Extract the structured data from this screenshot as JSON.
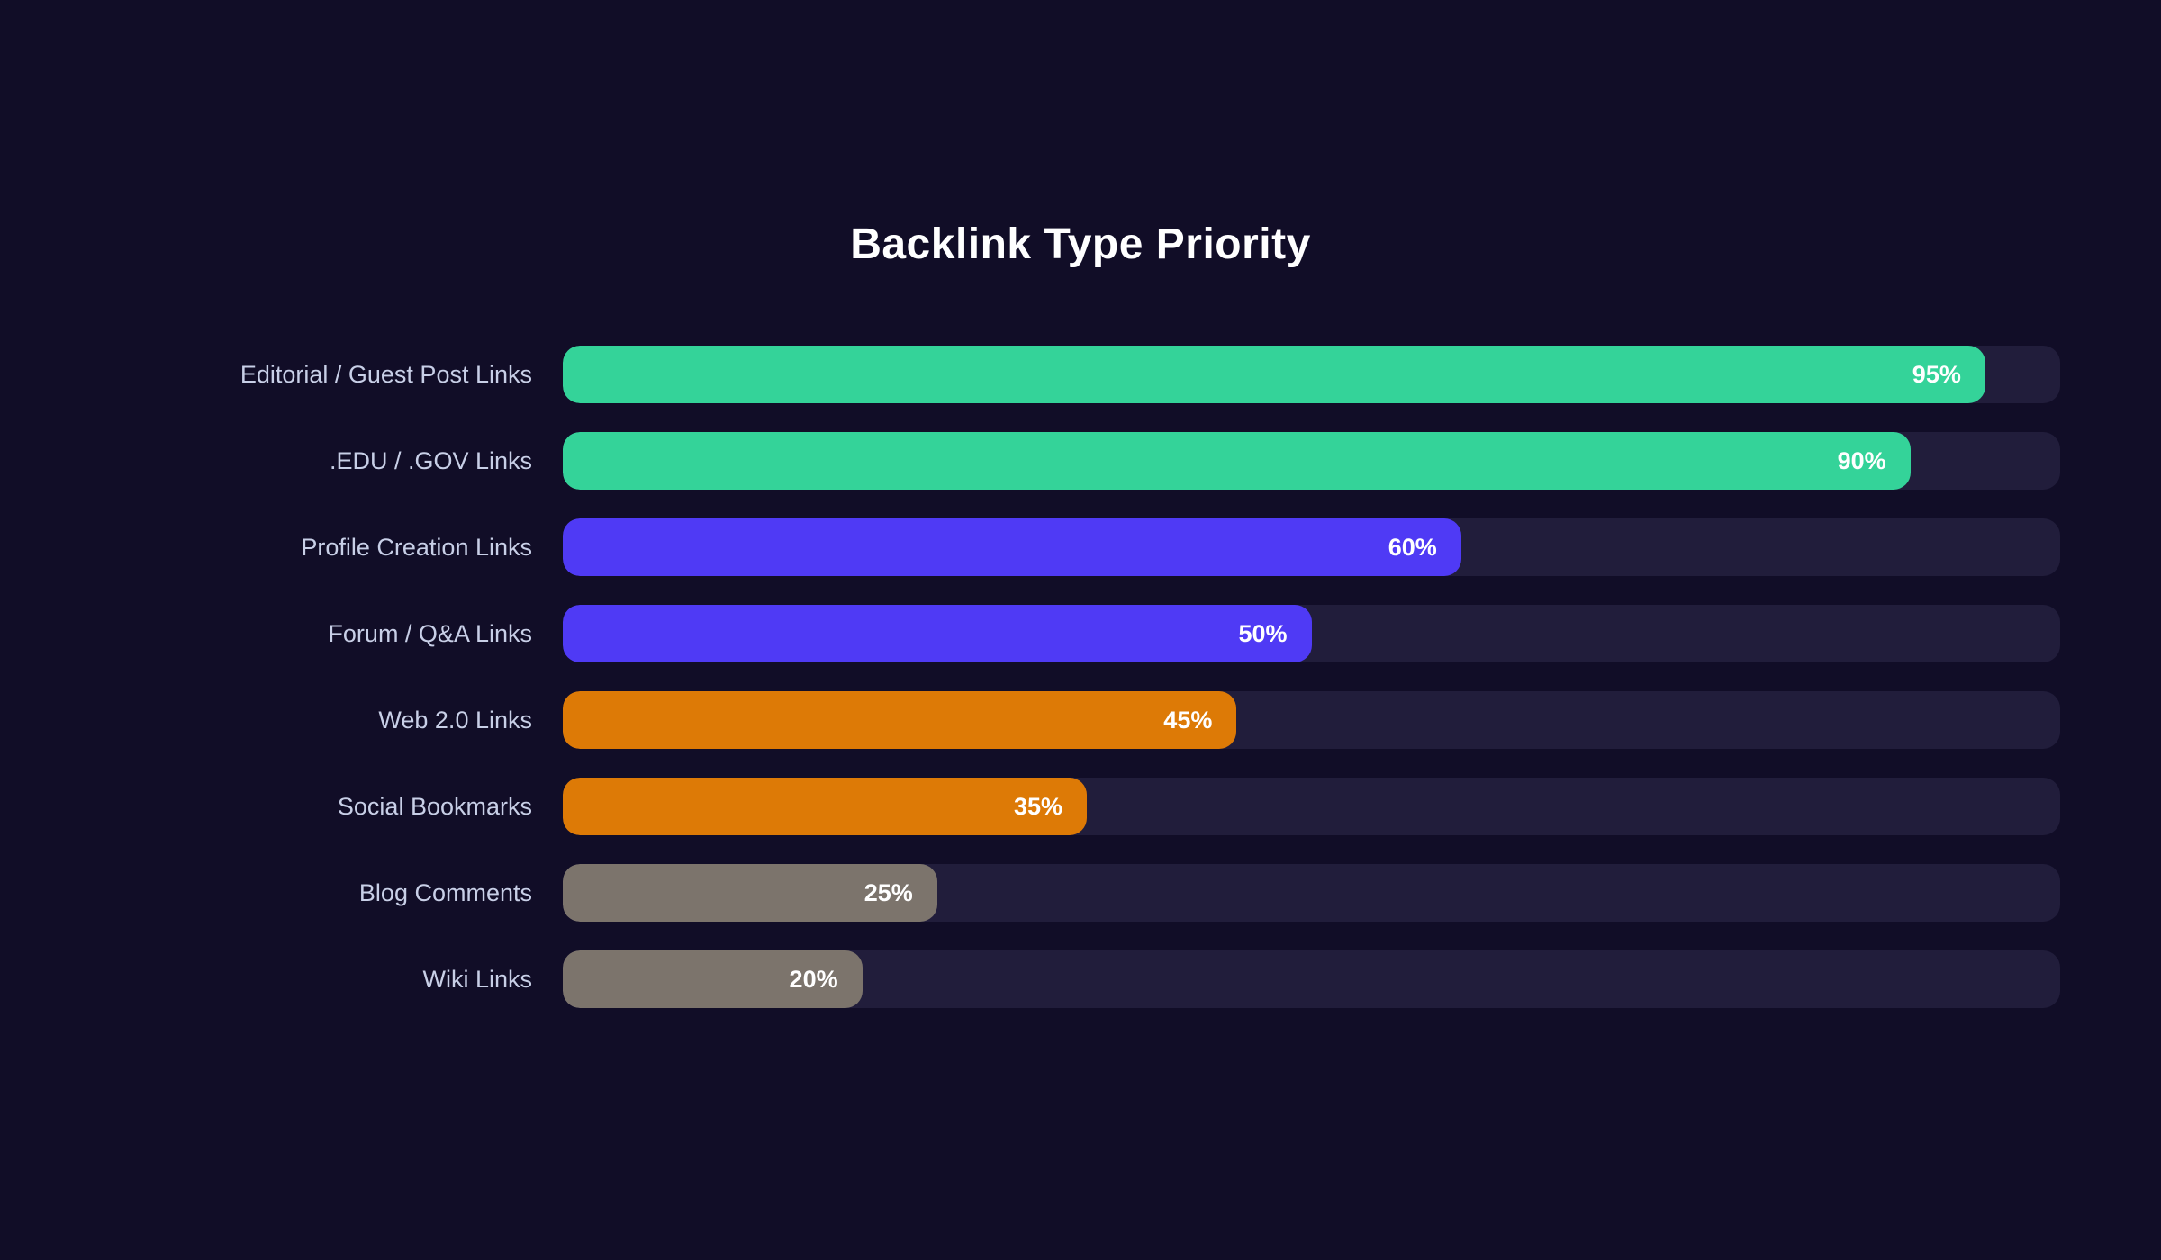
{
  "colors": {
    "background": "#110d27",
    "track": "#211d3b",
    "title_text": "#ffffff",
    "label_text": "#c8cfe7",
    "value_text": "#ffffff",
    "green": "#34d399",
    "blue": "#4f3af5",
    "orange": "#dd7a06",
    "gray": "#7c746c"
  },
  "chart_data": {
    "type": "bar",
    "orientation": "horizontal",
    "title": "Backlink Type Priority",
    "xlabel": "",
    "ylabel": "",
    "xlim": [
      0,
      100
    ],
    "grid": false,
    "legend": null,
    "value_unit": "%",
    "categories": [
      "Editorial / Guest Post Links",
      ".EDU / .GOV Links",
      "Profile Creation Links",
      "Forum / Q&A Links",
      "Web 2.0 Links",
      "Social Bookmarks",
      "Blog Comments",
      "Wiki Links"
    ],
    "values": [
      95,
      90,
      60,
      50,
      45,
      35,
      25,
      20
    ],
    "value_labels": [
      "95%",
      "90%",
      "60%",
      "50%",
      "45%",
      "35%",
      "25%",
      "20%"
    ],
    "bar_colors": [
      "#34d399",
      "#34d399",
      "#4f3af5",
      "#4f3af5",
      "#dd7a06",
      "#dd7a06",
      "#7c746c",
      "#7c746c"
    ]
  }
}
